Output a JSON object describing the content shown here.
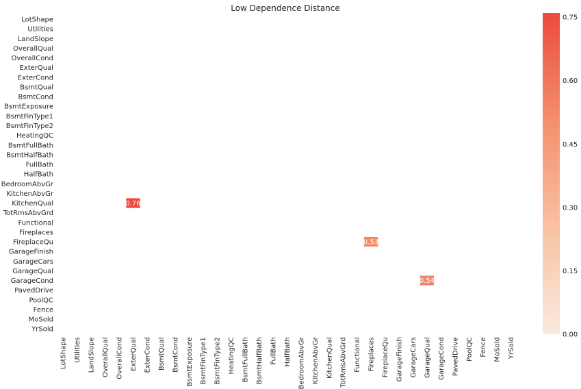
{
  "chart_data": {
    "type": "heatmap",
    "title": "Low Dependence Distance",
    "rows": [
      "LotShape",
      "Utilities",
      "LandSlope",
      "OverallQual",
      "OverallCond",
      "ExterQual",
      "ExterCond",
      "BsmtQual",
      "BsmtCond",
      "BsmtExposure",
      "BsmtFinType1",
      "BsmtFinType2",
      "HeatingQC",
      "BsmtFullBath",
      "BsmtHalfBath",
      "FullBath",
      "HalfBath",
      "BedroomAbvGr",
      "KitchenAbvGr",
      "KitchenQual",
      "TotRmsAbvGrd",
      "Functional",
      "Fireplaces",
      "FireplaceQu",
      "GarageFinish",
      "GarageCars",
      "GarageQual",
      "GarageCond",
      "PavedDrive",
      "PoolQC",
      "Fence",
      "MoSold",
      "YrSold"
    ],
    "columns": [
      "LotShape",
      "Utilities",
      "LandSlope",
      "OverallQual",
      "OverallCond",
      "ExterQual",
      "ExterCond",
      "BsmtQual",
      "BsmtCond",
      "BsmtExposure",
      "BsmtFinType1",
      "BsmtFinType2",
      "HeatingQC",
      "BsmtFullBath",
      "BsmtHalfBath",
      "FullBath",
      "HalfBath",
      "BedroomAbvGr",
      "KitchenAbvGr",
      "KitchenQual",
      "TotRmsAbvGrd",
      "Functional",
      "Fireplaces",
      "FireplaceQu",
      "GarageFinish",
      "GarageCars",
      "GarageQual",
      "GarageCond",
      "PavedDrive",
      "PoolQC",
      "Fence",
      "MoSold",
      "YrSold"
    ],
    "cells": [
      {
        "row": "KitchenQual",
        "column": "ExterQual",
        "value": 0.76,
        "label": "0.76"
      },
      {
        "row": "FireplaceQu",
        "column": "Fireplaces",
        "value": 0.53,
        "label": "0.53"
      },
      {
        "row": "GarageCond",
        "column": "GarageQual",
        "value": 0.54,
        "label": "0.54"
      }
    ],
    "colorbar": {
      "min": 0.0,
      "max": 0.76,
      "ticks": [
        0.0,
        0.15,
        0.3,
        0.45,
        0.6,
        0.75
      ],
      "tick_labels": [
        "0.00",
        "0.15",
        "0.30",
        "0.45",
        "0.60",
        "0.75"
      ],
      "colors": [
        "#faeade",
        "#f8c1a2",
        "#f38f6d",
        "#ed4a3f"
      ]
    },
    "grid": false
  }
}
